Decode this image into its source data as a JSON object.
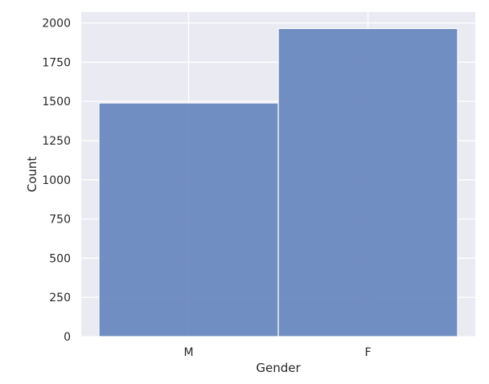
{
  "chart_data": {
    "type": "bar",
    "title": "",
    "xlabel": "Gender",
    "ylabel": "Count",
    "categories": [
      "M",
      "F"
    ],
    "values": [
      1490,
      1965
    ],
    "ylim": [
      0,
      2070
    ],
    "yticks": [
      0,
      250,
      500,
      750,
      1000,
      1250,
      1500,
      1750,
      2000
    ],
    "ytick_labels": [
      "0",
      "250",
      "500",
      "750",
      "1000",
      "1250",
      "1500",
      "1750",
      "2000"
    ],
    "grid": true,
    "legend": "none",
    "colors": {
      "bar": "#6a89bf",
      "bar_edge": "#ffffff",
      "plot_background": "#eaeaf2",
      "grid": "#ffffff",
      "text": "#262626"
    }
  }
}
